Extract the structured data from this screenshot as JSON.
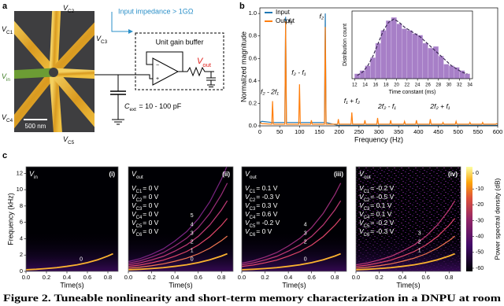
{
  "panel_labels": [
    "a",
    "b",
    "c"
  ],
  "panel_a": {
    "electrodes": [
      {
        "sym": "V",
        "sub": "C1"
      },
      {
        "sym": "V",
        "sub": "C2"
      },
      {
        "sym": "V",
        "sub": "C3"
      },
      {
        "sym": "V",
        "sub": "C4"
      },
      {
        "sym": "V",
        "sub": "C5"
      },
      {
        "sym": "V",
        "sub": "in"
      }
    ],
    "scale_bar": "500 nm",
    "impedance": "Input impedance > 1GΩ",
    "buffer": "Unit gain buffer",
    "vout": {
      "sym": "V",
      "sub": "out"
    },
    "cext": {
      "sym": "C",
      "sub": "ext",
      "text": " = 10 - 100 pF"
    }
  },
  "chart_data": [
    {
      "type": "line",
      "xlabel": "Frequency (Hz)",
      "ylabel": "Normalized magnitude",
      "xlim": [
        0,
        600
      ],
      "ylim": [
        0,
        1.05
      ],
      "xticks": [
        0,
        50,
        100,
        150,
        200,
        250,
        300,
        350,
        400,
        450,
        500,
        550,
        600
      ],
      "yticks": [
        {
          "value": 0,
          "label": "0.0"
        },
        0.2,
        0.4,
        0.6,
        0.8,
        {
          "value": 1,
          "label": "1.0"
        }
      ],
      "legend": "upper left",
      "x": [
        0,
        5,
        30,
        32,
        34,
        63,
        65,
        67,
        98,
        100,
        102,
        128,
        130,
        132,
        163,
        165,
        167,
        196,
        198,
        200,
        230,
        232,
        234,
        263,
        265,
        267,
        295,
        297,
        299,
        328,
        330,
        332,
        363,
        365,
        367,
        393,
        395,
        397,
        428,
        430,
        432,
        460,
        462,
        464,
        493,
        495,
        497,
        528,
        530,
        532,
        560,
        562,
        564,
        595,
        597,
        600
      ],
      "series": [
        {
          "name": "Input",
          "color": "#1f77b4",
          "values": [
            0.03,
            0.04,
            0.03,
            0.03,
            0.03,
            0.03,
            0.97,
            0.03,
            0.03,
            0.03,
            0.03,
            0.03,
            0.03,
            0.03,
            0.03,
            1.0,
            0.03,
            0.005,
            0.005,
            0.005,
            0.005,
            0.005,
            0.005,
            0.005,
            0.005,
            0.005,
            0.005,
            0.005,
            0.005,
            0.005,
            0.005,
            0.005,
            0.005,
            0.005,
            0.005,
            0.005,
            0.005,
            0.005,
            0.005,
            0.005,
            0.005,
            0.005,
            0.005,
            0.005,
            0.005,
            0.005,
            0.005,
            0.005,
            0.005,
            0.005,
            0.005,
            0.005,
            0.005,
            0.005,
            0.005,
            0.005
          ]
        },
        {
          "name": "Output",
          "color": "#ff7f0e",
          "values": [
            0.03,
            0.02,
            0.015,
            0.22,
            0.015,
            0.015,
            0.93,
            0.015,
            0.015,
            0.37,
            0.015,
            0.015,
            0.05,
            0.015,
            0.015,
            0.88,
            0.015,
            0.015,
            0.06,
            0.015,
            0.015,
            0.12,
            0.015,
            0.015,
            0.05,
            0.015,
            0.015,
            0.07,
            0.015,
            0.015,
            0.05,
            0.015,
            0.015,
            0.04,
            0.015,
            0.015,
            0.05,
            0.015,
            0.015,
            0.06,
            0.015,
            0.015,
            0.03,
            0.015,
            0.015,
            0.04,
            0.015,
            0.015,
            0.03,
            0.015,
            0.015,
            0.03,
            0.015,
            0.015,
            0.02,
            0.015
          ]
        }
      ],
      "annotations": [
        "f₁",
        "f₂",
        "f₂ - f₁",
        "f₂ - 2f₁",
        "f₁ + f₂",
        "2f₂ - f₁",
        "2f₂ + f₁"
      ]
    },
    {
      "type": "histogram",
      "xlabel": "Time constant (ms)",
      "ylabel": "Distribution count",
      "xlim": [
        11.5,
        34.5
      ],
      "ylim": [
        0,
        42
      ],
      "xticks": [
        12,
        14,
        16,
        18,
        20,
        22,
        24,
        26,
        28,
        30,
        32,
        34
      ],
      "color": "#a77fc7",
      "bins": [
        12,
        13,
        14,
        15,
        16,
        17,
        18,
        19,
        20,
        21,
        22,
        23,
        24,
        25,
        26,
        27,
        28,
        29,
        30,
        31,
        32,
        33,
        34
      ],
      "counts": [
        3,
        5,
        8,
        13,
        22,
        30,
        36,
        38,
        34,
        31,
        30,
        28,
        27,
        22,
        19,
        20,
        14,
        9,
        8,
        7,
        5,
        3
      ],
      "fit": [
        2,
        4,
        8,
        14,
        22,
        30,
        35,
        37,
        35,
        32,
        30,
        28,
        26,
        23,
        20,
        17,
        14,
        11,
        8,
        6,
        4,
        3
      ]
    },
    {
      "type": "spectrogram",
      "title": {
        "sym": "V",
        "sub": "in"
      },
      "tag": "(i)",
      "xlabel": "Time(s)",
      "ylabel": "Frequency (kHz)",
      "xlim": [
        0,
        0.9
      ],
      "ylim": [
        0,
        12.8
      ],
      "xticks": [
        {
          "value": 0,
          "label": "0.0"
        },
        0.2,
        0.4,
        0.6,
        0.8
      ],
      "yticks": [
        0,
        2,
        4,
        6,
        8,
        10,
        12
      ],
      "settings": [],
      "x": [
        0,
        0.1,
        0.2,
        0.3,
        0.4,
        0.5,
        0.6,
        0.7,
        0.8,
        0.85
      ],
      "series": [
        {
          "name": "0",
          "color": "#fbb32f",
          "values": [
            0.2,
            0.26,
            0.35,
            0.46,
            0.62,
            0.81,
            1.07,
            1.42,
            1.88,
            2.16
          ]
        }
      ]
    },
    {
      "type": "spectrogram",
      "title": {
        "sym": "V",
        "sub": "out"
      },
      "tag": "(ii)",
      "xlabel": "Time(s)",
      "xlim": [
        0,
        0.9
      ],
      "ylim": [
        0,
        12.8
      ],
      "xticks": [
        {
          "value": 0,
          "label": "0.0"
        },
        0.2,
        0.4,
        0.6,
        0.8
      ],
      "settings": [
        {
          "sym": "V",
          "sub": "C1",
          "text": "= 0 V"
        },
        {
          "sym": "V",
          "sub": "C2",
          "text": "= 0 V"
        },
        {
          "sym": "V",
          "sub": "C3",
          "text": "= 0 V"
        },
        {
          "sym": "V",
          "sub": "C4",
          "text": "= 0 V"
        },
        {
          "sym": "V",
          "sub": "C5",
          "text": "= 0 V"
        },
        {
          "sym": "V",
          "sub": "C6",
          "text": "= 0 V"
        }
      ],
      "x": [
        0,
        0.1,
        0.2,
        0.3,
        0.4,
        0.5,
        0.6,
        0.7,
        0.8,
        0.85
      ],
      "series": [
        {
          "name": "0",
          "color": "#fbb32f",
          "values": [
            0.2,
            0.26,
            0.35,
            0.46,
            0.62,
            0.81,
            1.07,
            1.42,
            1.88,
            2.16
          ]
        },
        {
          "name": "1",
          "color": "#f37651",
          "values": [
            0.4,
            0.52,
            0.7,
            0.92,
            1.24,
            1.62,
            2.14,
            2.84,
            3.76,
            4.32
          ]
        },
        {
          "name": "2",
          "color": "#e1466a",
          "values": [
            0.6,
            0.78,
            1.05,
            1.38,
            1.86,
            2.43,
            3.21,
            4.26,
            5.64,
            6.48
          ]
        },
        {
          "name": "3",
          "color": "#c03a76",
          "values": [
            0.8,
            1.04,
            1.4,
            1.84,
            2.48,
            3.24,
            4.28,
            5.68,
            7.52,
            8.64
          ]
        },
        {
          "name": "4",
          "color": "#9a2d7a",
          "values": [
            1.0,
            1.3,
            1.75,
            2.3,
            3.1,
            4.05,
            5.35,
            7.1,
            9.4,
            10.8
          ]
        },
        {
          "name": "5",
          "color": "#7a2482",
          "values": [
            1.2,
            1.56,
            2.1,
            2.76,
            3.72,
            4.86,
            6.42,
            8.52,
            11.28,
            12.96
          ]
        }
      ]
    },
    {
      "type": "spectrogram",
      "title": {
        "sym": "V",
        "sub": "out"
      },
      "tag": "(iii)",
      "xlabel": "Time(s)",
      "xlim": [
        0,
        0.9
      ],
      "ylim": [
        0,
        12.8
      ],
      "xticks": [
        {
          "value": 0,
          "label": "0.0"
        },
        0.2,
        0.4,
        0.6,
        0.8
      ],
      "settings": [
        {
          "sym": "V",
          "sub": "C1",
          "text": "= 0.1 V"
        },
        {
          "sym": "V",
          "sub": "C2",
          "text": "= -0.3 V"
        },
        {
          "sym": "V",
          "sub": "C3",
          "text": "= 0.3 V"
        },
        {
          "sym": "V",
          "sub": "C4",
          "text": "= 0.6 V"
        },
        {
          "sym": "V",
          "sub": "C5",
          "text": "= -0.2 V"
        },
        {
          "sym": "V",
          "sub": "C6",
          "text": "= 0 V"
        }
      ],
      "x": [
        0,
        0.1,
        0.2,
        0.3,
        0.4,
        0.5,
        0.6,
        0.7,
        0.8,
        0.85
      ],
      "series": [
        {
          "name": "0",
          "color": "#fbb32f",
          "values": [
            0.2,
            0.26,
            0.35,
            0.46,
            0.62,
            0.81,
            1.07,
            1.42,
            1.88,
            2.16
          ]
        },
        {
          "name": "2",
          "color": "#e1466a",
          "values": [
            0.6,
            0.78,
            1.05,
            1.38,
            1.86,
            2.43,
            3.21,
            4.26,
            5.64,
            6.48
          ]
        },
        {
          "name": "3",
          "color": "#c03a76",
          "values": [
            0.8,
            1.04,
            1.4,
            1.84,
            2.48,
            3.24,
            4.28,
            5.68,
            7.52,
            8.64
          ]
        },
        {
          "name": "4",
          "color": "#9a2d7a",
          "values": [
            1.0,
            1.3,
            1.75,
            2.3,
            3.1,
            4.05,
            5.35,
            7.1,
            9.4,
            10.8
          ]
        }
      ]
    },
    {
      "type": "spectrogram",
      "title": {
        "sym": "V",
        "sub": "out"
      },
      "tag": "(iv)",
      "xlabel": "Time(s)",
      "xlim": [
        0,
        0.9
      ],
      "ylim": [
        0,
        12.8
      ],
      "xticks": [
        {
          "value": 0,
          "label": "0.0"
        },
        0.2,
        0.4,
        0.6,
        0.8
      ],
      "settings": [
        {
          "sym": "V",
          "sub": "C1",
          "text": "= -0.2 V"
        },
        {
          "sym": "V",
          "sub": "C2",
          "text": "= -0.5 V"
        },
        {
          "sym": "V",
          "sub": "C3",
          "text": "= 0.1 V"
        },
        {
          "sym": "V",
          "sub": "C4",
          "text": "= 0.1 V"
        },
        {
          "sym": "V",
          "sub": "C5",
          "text": "= -0.2 V"
        },
        {
          "sym": "V",
          "sub": "C6",
          "text": "= -0.3 V"
        }
      ],
      "x": [
        0,
        0.1,
        0.2,
        0.3,
        0.4,
        0.5,
        0.6,
        0.7,
        0.8,
        0.85
      ],
      "series": [
        {
          "name": null,
          "color": "#fbb32f",
          "values": [
            0.2,
            0.26,
            0.35,
            0.46,
            0.62,
            0.81,
            1.07,
            1.42,
            1.88,
            2.16
          ]
        },
        {
          "name": "1",
          "color": "#f37651",
          "values": [
            0.4,
            0.52,
            0.7,
            0.92,
            1.24,
            1.62,
            2.14,
            2.84,
            3.76,
            4.32
          ]
        },
        {
          "name": "2",
          "color": "#e1466a",
          "values": [
            0.6,
            0.78,
            1.05,
            1.38,
            1.86,
            2.43,
            3.21,
            4.26,
            5.64,
            6.48
          ]
        },
        {
          "name": "3",
          "color": "#c03a76",
          "values": [
            0.8,
            1.04,
            1.4,
            1.84,
            2.48,
            3.24,
            4.28,
            5.68,
            7.52,
            8.64
          ]
        }
      ]
    }
  ],
  "colorbar": {
    "label": "Power spectral density (dB)",
    "lim": [
      -62,
      4
    ],
    "ticks": [
      0,
      -10,
      -20,
      -30,
      -40,
      -50,
      -60
    ]
  },
  "caption": "Figure 2. Tuneable nonlinearity and short-term memory characterization in a DNPU at room"
}
